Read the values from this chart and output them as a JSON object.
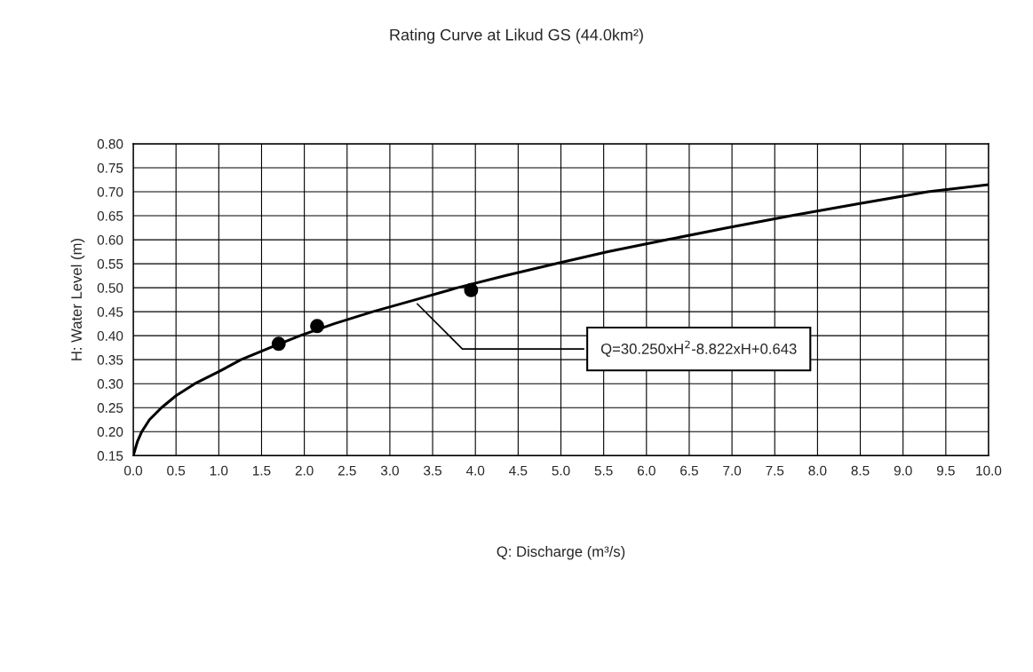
{
  "chart_data": {
    "type": "line",
    "title": "Rating Curve at Likud GS (44.0km²)",
    "xlabel": "Q: Discharge (m³/s)",
    "ylabel": "H: Water Level (m)",
    "series": [
      {
        "color": "#000000",
        "marker": "none",
        "line_style": "solid",
        "x": [
          0.0,
          0.05,
          0.1,
          0.19,
          0.33,
          0.5,
          0.72,
          1.0,
          1.26,
          1.6,
          1.95,
          2.35,
          2.8,
          3.3,
          3.79,
          4.35,
          4.94,
          5.55,
          6.24,
          6.95,
          7.69,
          8.48,
          9.29,
          10.0
        ],
        "values": [
          0.15,
          0.18,
          0.2,
          0.225,
          0.25,
          0.275,
          0.3,
          0.325,
          0.35,
          0.375,
          0.4,
          0.425,
          0.45,
          0.475,
          0.5,
          0.525,
          0.55,
          0.575,
          0.6,
          0.625,
          0.65,
          0.675,
          0.7,
          0.715
        ]
      },
      {
        "type": "scatter",
        "color": "#000000",
        "marker": "circle",
        "x": [
          1.7,
          2.15,
          3.95
        ],
        "values": [
          0.383,
          0.42,
          0.495
        ]
      }
    ],
    "annotations": [
      {
        "text": "Q=30.250xH$^{2}$-8.822xH+0.643",
        "x": 3.3,
        "y": 0.47
      }
    ],
    "xlim": [
      0,
      10
    ],
    "ylim": [
      0.15,
      0.8
    ],
    "xticks": [
      {
        "value": 0,
        "label": "0.0"
      },
      {
        "value": 0.5,
        "label": "0.5"
      },
      {
        "value": 1,
        "label": "1.0"
      },
      {
        "value": 1.5,
        "label": "1.5"
      },
      {
        "value": 2,
        "label": "2.0"
      },
      {
        "value": 2.5,
        "label": "2.5"
      },
      {
        "value": 3,
        "label": "3.0"
      },
      {
        "value": 3.5,
        "label": "3.5"
      },
      {
        "value": 4,
        "label": "4.0"
      },
      {
        "value": 4.5,
        "label": "4.5"
      },
      {
        "value": 5,
        "label": "5.0"
      },
      {
        "value": 5.5,
        "label": "5.5"
      },
      {
        "value": 6,
        "label": "6.0"
      },
      {
        "value": 6.5,
        "label": "6.5"
      },
      {
        "value": 7,
        "label": "7.0"
      },
      {
        "value": 7.5,
        "label": "7.5"
      },
      {
        "value": 8,
        "label": "8.0"
      },
      {
        "value": 8.5,
        "label": "8.5"
      },
      {
        "value": 9,
        "label": "9.0"
      },
      {
        "value": 9.5,
        "label": "9.5"
      },
      {
        "value": 10,
        "label": "10.0"
      }
    ],
    "yticks": [
      {
        "value": 0.15,
        "label": "0.15"
      },
      {
        "value": 0.2,
        "label": "0.20"
      },
      {
        "value": 0.25,
        "label": "0.25"
      },
      {
        "value": 0.3,
        "label": "0.30"
      },
      {
        "value": 0.35,
        "label": "0.35"
      },
      {
        "value": 0.4,
        "label": "0.40"
      },
      {
        "value": 0.45,
        "label": "0.45"
      },
      {
        "value": 0.5,
        "label": "0.50"
      },
      {
        "value": 0.55,
        "label": "0.55"
      },
      {
        "value": 0.6,
        "label": "0.60"
      },
      {
        "value": 0.65,
        "label": "0.65"
      },
      {
        "value": 0.7,
        "label": "0.70"
      },
      {
        "value": 0.75,
        "label": "0.75"
      },
      {
        "value": 0.8,
        "label": "0.80"
      }
    ],
    "grid": true
  }
}
